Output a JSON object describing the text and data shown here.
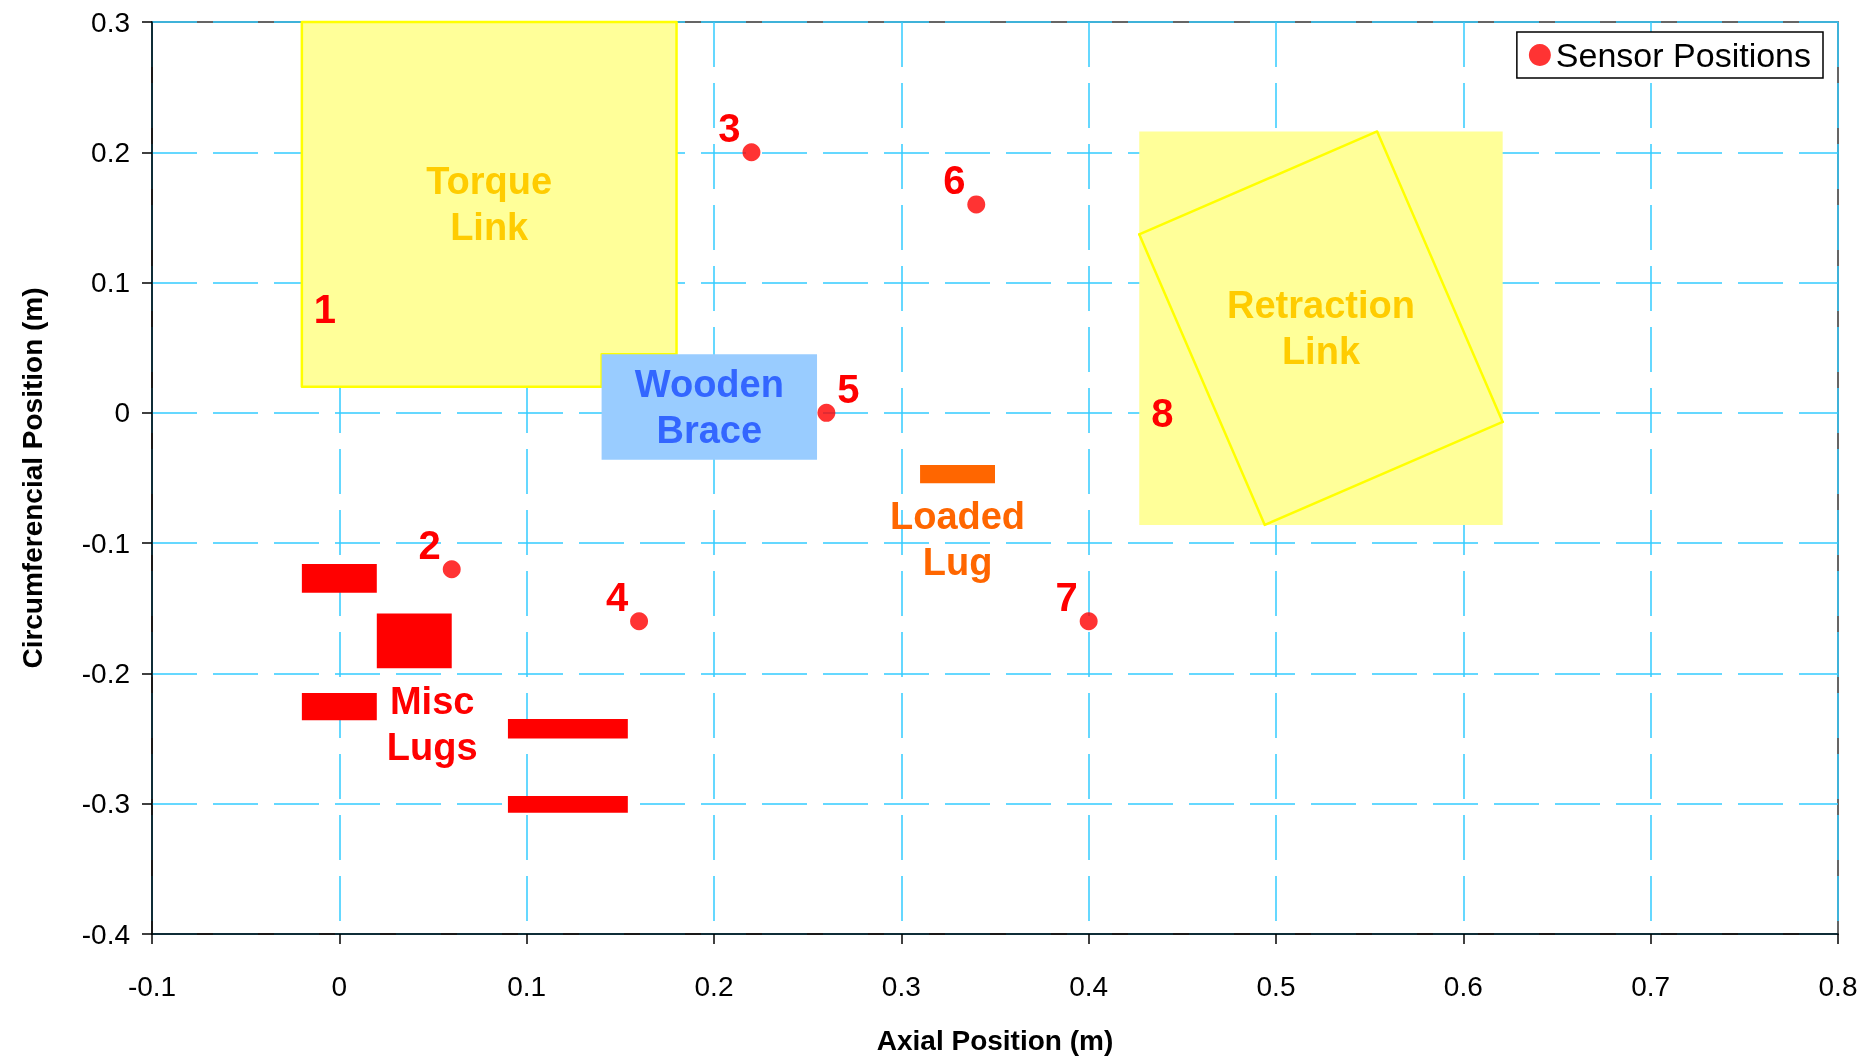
{
  "chart_data": {
    "type": "scatter",
    "xlabel": "Axial Position (m)",
    "ylabel": "Circumferencial Position (m)",
    "xlim": [
      -0.1,
      0.8
    ],
    "xticks": [
      -0.1,
      0,
      0.1,
      0.2,
      0.3,
      0.4,
      0.5,
      0.6,
      0.7,
      0.8
    ],
    "ylim": [
      -0.4,
      0.3
    ],
    "yticks": [
      -0.4,
      -0.3,
      -0.2,
      -0.1,
      0,
      0.1,
      0.2,
      0.3
    ],
    "grid": true,
    "legend": "top right",
    "series": [
      {
        "name": "Torque Link",
        "type": "area",
        "color": "#ffff99",
        "line_style": "solid",
        "x": [
          -0.02,
          0.18,
          0.18,
          0.14,
          0.14,
          -0.02
        ],
        "values": [
          0.3,
          0.3,
          0.045,
          0.045,
          0.02,
          0.02
        ]
      },
      {
        "name": "Retraction Link",
        "type": "area",
        "color": "#ffff99",
        "x": [
          0.427,
          0.621,
          0.621,
          0.427
        ],
        "values": [
          0.216,
          0.216,
          -0.086,
          -0.086
        ]
      },
      {
        "type": "line",
        "color": "#ffff00",
        "x": [
          0.427,
          0.554,
          0.621
        ],
        "values": [
          0.137,
          0.216,
          -0.007
        ]
      },
      {
        "type": "line",
        "color": "#ffff00",
        "x": [
          0.427,
          0.494,
          0.621
        ],
        "values": [
          0.137,
          -0.086,
          -0.007
        ]
      },
      {
        "name": "Wooden Brace",
        "type": "area",
        "color": "#99ccff",
        "x": [
          0.14,
          0.255,
          0.255,
          0.14
        ],
        "values": [
          0.045,
          0.045,
          -0.036,
          -0.036
        ]
      },
      {
        "name": "Loaded Lug",
        "type": "area",
        "color": "#ff6600",
        "x": [
          0.31,
          0.35,
          0.35,
          0.31
        ],
        "values": [
          -0.04,
          -0.04,
          -0.054,
          -0.054
        ]
      },
      {
        "name": "Misc Lugs",
        "type": "area",
        "color": "#ff0000",
        "x": [
          -0.02,
          0.02,
          0.02,
          -0.02,
          null,
          0.02,
          0.06,
          0.06,
          0.02,
          null,
          -0.02,
          0.02,
          0.02,
          -0.02,
          null,
          0.09,
          0.154,
          0.154,
          0.09,
          null,
          0.09,
          0.154,
          0.154,
          0.09
        ],
        "values": [
          -0.116,
          -0.116,
          -0.138,
          -0.138,
          null,
          -0.154,
          -0.154,
          -0.196,
          -0.196,
          null,
          -0.215,
          -0.215,
          -0.236,
          -0.236,
          null,
          -0.235,
          -0.235,
          -0.25,
          -0.25,
          null,
          -0.294,
          -0.294,
          -0.307,
          -0.307
        ]
      },
      {
        "name": "Sensor Positions",
        "marker": "circle",
        "color": "#ff0000",
        "x": [
          0.06,
          0.22,
          0.16,
          0.26,
          0.34,
          0.4
        ],
        "values": [
          -0.12,
          0.2,
          -0.16,
          0,
          0.16,
          -0.16
        ]
      }
    ],
    "annotations": [
      {
        "text": "1",
        "x": -0.02,
        "y": 0.08
      },
      {
        "text": "2",
        "x": 0.06,
        "y": -0.12
      },
      {
        "text": "3",
        "x": 0.22,
        "y": 0.2
      },
      {
        "text": "4",
        "x": 0.16,
        "y": -0.16
      },
      {
        "text": "5",
        "x": 0.26,
        "y": 0
      },
      {
        "text": "6",
        "x": 0.34,
        "y": 0.16
      },
      {
        "text": "7",
        "x": 0.4,
        "y": -0.16
      },
      {
        "text": "8",
        "x": 0.427,
        "y": 0
      }
    ]
  }
}
